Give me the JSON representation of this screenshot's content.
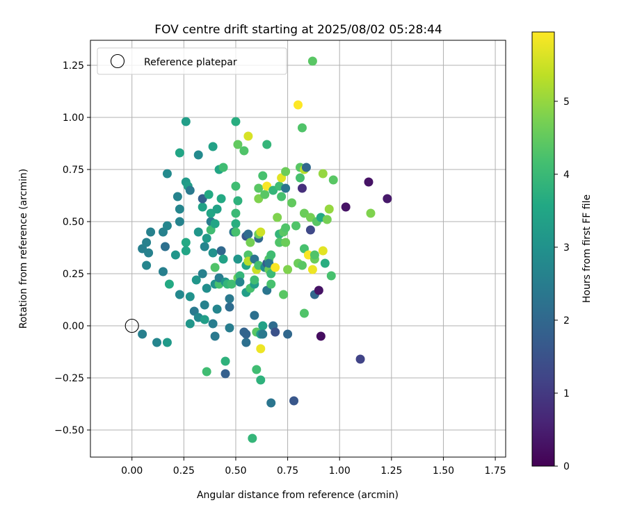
{
  "chart_data": {
    "type": "scatter",
    "title": "FOV centre drift starting at 2025/08/02 05:28:44",
    "xlabel": "Angular distance from reference (arcmin)",
    "ylabel": "Rotation from reference (arcmin)",
    "xlim": [
      -0.2,
      1.8
    ],
    "ylim": [
      -0.63,
      1.37
    ],
    "xticks": [
      0.0,
      0.25,
      0.5,
      0.75,
      1.0,
      1.25,
      1.5,
      1.75
    ],
    "xtick_labels": [
      "0.00",
      "0.25",
      "0.50",
      "0.75",
      "1.00",
      "1.25",
      "1.50",
      "1.75"
    ],
    "yticks": [
      -0.5,
      -0.25,
      0.0,
      0.25,
      0.5,
      0.75,
      1.0,
      1.25
    ],
    "ytick_labels": [
      "−0.50",
      "−0.25",
      "0.00",
      "0.25",
      "0.50",
      "0.75",
      "1.00",
      "1.25"
    ],
    "grid": true,
    "legend": {
      "position": "top-left",
      "entries": [
        "Reference platepar"
      ]
    },
    "reference_point": {
      "x": 0.0,
      "y": 0.0
    },
    "colorbar": {
      "label": "Hours from first FF file",
      "range": [
        0,
        5.95
      ],
      "ticks": [
        0,
        1,
        2,
        3,
        4,
        5
      ],
      "tick_labels": [
        "0",
        "1",
        "2",
        "3",
        "4",
        "5"
      ],
      "colormap": "viridis"
    },
    "points": [
      {
        "x": 0.05,
        "y": -0.04,
        "h": 2.55
      },
      {
        "x": 0.12,
        "y": -0.08,
        "h": 2.7
      },
      {
        "x": 0.17,
        "y": -0.08,
        "h": 3.2
      },
      {
        "x": 0.05,
        "y": 0.37,
        "h": 2.55
      },
      {
        "x": 0.07,
        "y": 0.4,
        "h": 2.6
      },
      {
        "x": 0.09,
        "y": 0.45,
        "h": 2.6
      },
      {
        "x": 0.07,
        "y": 0.29,
        "h": 2.7
      },
      {
        "x": 0.08,
        "y": 0.35,
        "h": 2.6
      },
      {
        "x": 0.15,
        "y": 0.26,
        "h": 2.55
      },
      {
        "x": 0.15,
        "y": 0.45,
        "h": 2.6
      },
      {
        "x": 0.16,
        "y": 0.38,
        "h": 2.2
      },
      {
        "x": 0.17,
        "y": 0.48,
        "h": 2.7
      },
      {
        "x": 0.17,
        "y": 0.73,
        "h": 2.8
      },
      {
        "x": 0.18,
        "y": 0.2,
        "h": 3.6
      },
      {
        "x": 0.21,
        "y": 0.34,
        "h": 3.1
      },
      {
        "x": 0.22,
        "y": 0.62,
        "h": 2.65
      },
      {
        "x": 0.23,
        "y": 0.56,
        "h": 2.7
      },
      {
        "x": 0.23,
        "y": 0.83,
        "h": 3.5
      },
      {
        "x": 0.23,
        "y": 0.5,
        "h": 2.65
      },
      {
        "x": 0.23,
        "y": 0.15,
        "h": 2.75
      },
      {
        "x": 0.26,
        "y": 0.98,
        "h": 3.3
      },
      {
        "x": 0.26,
        "y": 0.69,
        "h": 3.2
      },
      {
        "x": 0.26,
        "y": 0.36,
        "h": 3.5
      },
      {
        "x": 0.26,
        "y": 0.4,
        "h": 3.6
      },
      {
        "x": 0.27,
        "y": 0.67,
        "h": 3.3
      },
      {
        "x": 0.28,
        "y": 0.65,
        "h": 2.4
      },
      {
        "x": 0.28,
        "y": 0.14,
        "h": 3.0
      },
      {
        "x": 0.28,
        "y": 0.01,
        "h": 3.1
      },
      {
        "x": 0.3,
        "y": 0.07,
        "h": 2.4
      },
      {
        "x": 0.31,
        "y": 0.22,
        "h": 3.1
      },
      {
        "x": 0.32,
        "y": 0.82,
        "h": 2.8
      },
      {
        "x": 0.32,
        "y": 0.04,
        "h": 2.75
      },
      {
        "x": 0.32,
        "y": 0.45,
        "h": 3.1
      },
      {
        "x": 0.34,
        "y": 0.57,
        "h": 3.4
      },
      {
        "x": 0.34,
        "y": 0.61,
        "h": 1.8
      },
      {
        "x": 0.34,
        "y": 0.25,
        "h": 2.6
      },
      {
        "x": 0.35,
        "y": 0.38,
        "h": 2.7
      },
      {
        "x": 0.35,
        "y": 0.1,
        "h": 2.6
      },
      {
        "x": 0.35,
        "y": 0.03,
        "h": 3.3
      },
      {
        "x": 0.36,
        "y": 0.42,
        "h": 3.2
      },
      {
        "x": 0.36,
        "y": 0.18,
        "h": 2.9
      },
      {
        "x": 0.36,
        "y": -0.22,
        "h": 4.1
      },
      {
        "x": 0.37,
        "y": 0.63,
        "h": 3.6
      },
      {
        "x": 0.38,
        "y": 0.5,
        "h": 2.5
      },
      {
        "x": 0.38,
        "y": 0.54,
        "h": 3.5
      },
      {
        "x": 0.38,
        "y": 0.46,
        "h": 4.1
      },
      {
        "x": 0.39,
        "y": 0.86,
        "h": 3.4
      },
      {
        "x": 0.39,
        "y": 0.35,
        "h": 3.0
      },
      {
        "x": 0.39,
        "y": 0.01,
        "h": 2.5
      },
      {
        "x": 0.4,
        "y": 0.28,
        "h": 4.3
      },
      {
        "x": 0.4,
        "y": 0.49,
        "h": 3.5
      },
      {
        "x": 0.4,
        "y": 0.2,
        "h": 3.0
      },
      {
        "x": 0.4,
        "y": -0.05,
        "h": 2.4
      },
      {
        "x": 0.41,
        "y": 0.08,
        "h": 2.7
      },
      {
        "x": 0.41,
        "y": 0.56,
        "h": 3.4
      },
      {
        "x": 0.42,
        "y": 0.75,
        "h": 3.5
      },
      {
        "x": 0.42,
        "y": 0.2,
        "h": 4.2
      },
      {
        "x": 0.42,
        "y": 0.23,
        "h": 2.5
      },
      {
        "x": 0.43,
        "y": 0.36,
        "h": 2.0
      },
      {
        "x": 0.43,
        "y": 0.61,
        "h": 3.6
      },
      {
        "x": 0.44,
        "y": 0.76,
        "h": 4.1
      },
      {
        "x": 0.44,
        "y": 0.32,
        "h": 3.4
      },
      {
        "x": 0.45,
        "y": -0.23,
        "h": 1.8
      },
      {
        "x": 0.45,
        "y": -0.17,
        "h": 3.8
      },
      {
        "x": 0.45,
        "y": 0.21,
        "h": 3.1
      },
      {
        "x": 0.46,
        "y": 0.2,
        "h": 3.9
      },
      {
        "x": 0.47,
        "y": 0.13,
        "h": 2.4
      },
      {
        "x": 0.47,
        "y": 0.09,
        "h": 2.1
      },
      {
        "x": 0.47,
        "y": -0.01,
        "h": 2.5
      },
      {
        "x": 0.48,
        "y": 0.2,
        "h": 4.1
      },
      {
        "x": 0.49,
        "y": 0.45,
        "h": 2.3
      },
      {
        "x": 0.5,
        "y": 0.98,
        "h": 3.7
      },
      {
        "x": 0.5,
        "y": 0.67,
        "h": 4.1
      },
      {
        "x": 0.5,
        "y": 0.54,
        "h": 4.0
      },
      {
        "x": 0.5,
        "y": 0.49,
        "h": 3.7
      },
      {
        "x": 0.5,
        "y": 0.45,
        "h": 4.2
      },
      {
        "x": 0.51,
        "y": 0.87,
        "h": 4.5
      },
      {
        "x": 0.51,
        "y": 0.6,
        "h": 3.8
      },
      {
        "x": 0.51,
        "y": 0.32,
        "h": 3.1
      },
      {
        "x": 0.51,
        "y": 0.23,
        "h": 4.6
      },
      {
        "x": 0.52,
        "y": 0.24,
        "h": 3.9
      },
      {
        "x": 0.52,
        "y": 0.21,
        "h": 2.7
      },
      {
        "x": 0.54,
        "y": 0.84,
        "h": 4.3
      },
      {
        "x": 0.54,
        "y": -0.03,
        "h": 1.9
      },
      {
        "x": 0.55,
        "y": -0.08,
        "h": 2.2
      },
      {
        "x": 0.55,
        "y": -0.04,
        "h": 1.9
      },
      {
        "x": 0.55,
        "y": 0.43,
        "h": 1.6
      },
      {
        "x": 0.55,
        "y": 0.16,
        "h": 3.3
      },
      {
        "x": 0.55,
        "y": 0.29,
        "h": 3.5
      },
      {
        "x": 0.56,
        "y": 0.91,
        "h": 5.6
      },
      {
        "x": 0.56,
        "y": 0.44,
        "h": 2.1
      },
      {
        "x": 0.56,
        "y": 0.34,
        "h": 4.3
      },
      {
        "x": 0.56,
        "y": 0.31,
        "h": 5.3
      },
      {
        "x": 0.57,
        "y": 0.4,
        "h": 4.7
      },
      {
        "x": 0.57,
        "y": 0.18,
        "h": 4.2
      },
      {
        "x": 0.58,
        "y": -0.54,
        "h": 3.9
      },
      {
        "x": 0.59,
        "y": 0.32,
        "h": 2.3
      },
      {
        "x": 0.59,
        "y": 0.05,
        "h": 2.2
      },
      {
        "x": 0.59,
        "y": 0.2,
        "h": 3.3
      },
      {
        "x": 0.59,
        "y": 0.22,
        "h": 4.1
      },
      {
        "x": 0.6,
        "y": 0.27,
        "h": 5.5
      },
      {
        "x": 0.6,
        "y": -0.03,
        "h": 4.4
      },
      {
        "x": 0.6,
        "y": -0.21,
        "h": 4.1
      },
      {
        "x": 0.61,
        "y": 0.29,
        "h": 4.2
      },
      {
        "x": 0.61,
        "y": 0.66,
        "h": 4.4
      },
      {
        "x": 0.61,
        "y": 0.61,
        "h": 4.8
      },
      {
        "x": 0.61,
        "y": 0.42,
        "h": 2.0
      },
      {
        "x": 0.61,
        "y": 0.44,
        "h": 4.6
      },
      {
        "x": 0.62,
        "y": 0.45,
        "h": 5.5
      },
      {
        "x": 0.62,
        "y": -0.11,
        "h": 5.8
      },
      {
        "x": 0.62,
        "y": -0.04,
        "h": 3.3
      },
      {
        "x": 0.62,
        "y": -0.26,
        "h": 3.8
      },
      {
        "x": 0.63,
        "y": 0.0,
        "h": 3.4
      },
      {
        "x": 0.63,
        "y": -0.04,
        "h": 2.4
      },
      {
        "x": 0.63,
        "y": 0.72,
        "h": 4.2
      },
      {
        "x": 0.64,
        "y": 0.28,
        "h": 2.9
      },
      {
        "x": 0.64,
        "y": 0.63,
        "h": 4.4
      },
      {
        "x": 0.65,
        "y": 0.67,
        "h": 5.9
      },
      {
        "x": 0.65,
        "y": 0.87,
        "h": 3.9
      },
      {
        "x": 0.65,
        "y": 0.3,
        "h": 1.7
      },
      {
        "x": 0.65,
        "y": 0.17,
        "h": 2.3
      },
      {
        "x": 0.66,
        "y": 0.27,
        "h": 4.6
      },
      {
        "x": 0.66,
        "y": 0.32,
        "h": 4.3
      },
      {
        "x": 0.66,
        "y": 0.3,
        "h": 2.4
      },
      {
        "x": 0.67,
        "y": 0.25,
        "h": 4.0
      },
      {
        "x": 0.67,
        "y": 0.2,
        "h": 4.2
      },
      {
        "x": 0.67,
        "y": -0.37,
        "h": 2.3
      },
      {
        "x": 0.67,
        "y": 0.34,
        "h": 4.1
      },
      {
        "x": 0.68,
        "y": 0.0,
        "h": 2.1
      },
      {
        "x": 0.68,
        "y": 0.65,
        "h": 3.9
      },
      {
        "x": 0.69,
        "y": 0.28,
        "h": 5.9
      },
      {
        "x": 0.69,
        "y": -0.03,
        "h": 1.5
      },
      {
        "x": 0.7,
        "y": 0.52,
        "h": 4.8
      },
      {
        "x": 0.71,
        "y": 0.67,
        "h": 4.1
      },
      {
        "x": 0.71,
        "y": 0.44,
        "h": 3.9
      },
      {
        "x": 0.71,
        "y": 0.4,
        "h": 4.3
      },
      {
        "x": 0.72,
        "y": 0.71,
        "h": 5.7
      },
      {
        "x": 0.72,
        "y": 0.62,
        "h": 4.2
      },
      {
        "x": 0.73,
        "y": 0.15,
        "h": 4.4
      },
      {
        "x": 0.73,
        "y": 0.45,
        "h": 4.4
      },
      {
        "x": 0.74,
        "y": 0.74,
        "h": 4.6
      },
      {
        "x": 0.74,
        "y": 0.66,
        "h": 2.3
      },
      {
        "x": 0.74,
        "y": 0.47,
        "h": 4.3
      },
      {
        "x": 0.74,
        "y": 0.4,
        "h": 4.6
      },
      {
        "x": 0.75,
        "y": 0.27,
        "h": 4.8
      },
      {
        "x": 0.75,
        "y": -0.04,
        "h": 2.0
      },
      {
        "x": 0.77,
        "y": 0.59,
        "h": 4.5
      },
      {
        "x": 0.78,
        "y": -0.36,
        "h": 1.6
      },
      {
        "x": 0.79,
        "y": 0.48,
        "h": 4.3
      },
      {
        "x": 0.8,
        "y": 1.06,
        "h": 5.95
      },
      {
        "x": 0.8,
        "y": 0.3,
        "h": 4.6
      },
      {
        "x": 0.81,
        "y": 0.76,
        "h": 4.4
      },
      {
        "x": 0.81,
        "y": 0.71,
        "h": 4.2
      },
      {
        "x": 0.82,
        "y": 0.95,
        "h": 4.3
      },
      {
        "x": 0.82,
        "y": 0.29,
        "h": 4.4
      },
      {
        "x": 0.82,
        "y": 0.66,
        "h": 0.8
      },
      {
        "x": 0.83,
        "y": 0.54,
        "h": 4.6
      },
      {
        "x": 0.83,
        "y": 0.37,
        "h": 4.2
      },
      {
        "x": 0.83,
        "y": 0.06,
        "h": 4.3
      },
      {
        "x": 0.83,
        "y": 0.75,
        "h": 5.3
      },
      {
        "x": 0.84,
        "y": 0.76,
        "h": 2.0
      },
      {
        "x": 0.85,
        "y": 0.34,
        "h": 5.9
      },
      {
        "x": 0.86,
        "y": 0.46,
        "h": 1.3
      },
      {
        "x": 0.86,
        "y": 0.52,
        "h": 4.7
      },
      {
        "x": 0.87,
        "y": 1.27,
        "h": 4.4
      },
      {
        "x": 0.87,
        "y": 0.27,
        "h": 5.8
      },
      {
        "x": 0.88,
        "y": 0.15,
        "h": 2.0
      },
      {
        "x": 0.88,
        "y": 0.32,
        "h": 4.6
      },
      {
        "x": 0.88,
        "y": 0.34,
        "h": 4.3
      },
      {
        "x": 0.89,
        "y": 0.5,
        "h": 4.4
      },
      {
        "x": 0.9,
        "y": 0.17,
        "h": 0.3
      },
      {
        "x": 0.91,
        "y": -0.05,
        "h": 0.2
      },
      {
        "x": 0.91,
        "y": 0.52,
        "h": 3.6
      },
      {
        "x": 0.92,
        "y": 0.73,
        "h": 5.0
      },
      {
        "x": 0.92,
        "y": 0.36,
        "h": 5.7
      },
      {
        "x": 0.93,
        "y": 0.3,
        "h": 3.7
      },
      {
        "x": 0.94,
        "y": 0.51,
        "h": 4.7
      },
      {
        "x": 0.95,
        "y": 0.56,
        "h": 5.0
      },
      {
        "x": 0.96,
        "y": 0.24,
        "h": 4.2
      },
      {
        "x": 0.97,
        "y": 0.7,
        "h": 4.4
      },
      {
        "x": 1.03,
        "y": 0.57,
        "h": 0.3
      },
      {
        "x": 1.1,
        "y": -0.16,
        "h": 1.2
      },
      {
        "x": 1.14,
        "y": 0.69,
        "h": 0.3
      },
      {
        "x": 1.15,
        "y": 0.54,
        "h": 4.8
      },
      {
        "x": 1.23,
        "y": 0.61,
        "h": 0.4
      }
    ]
  }
}
